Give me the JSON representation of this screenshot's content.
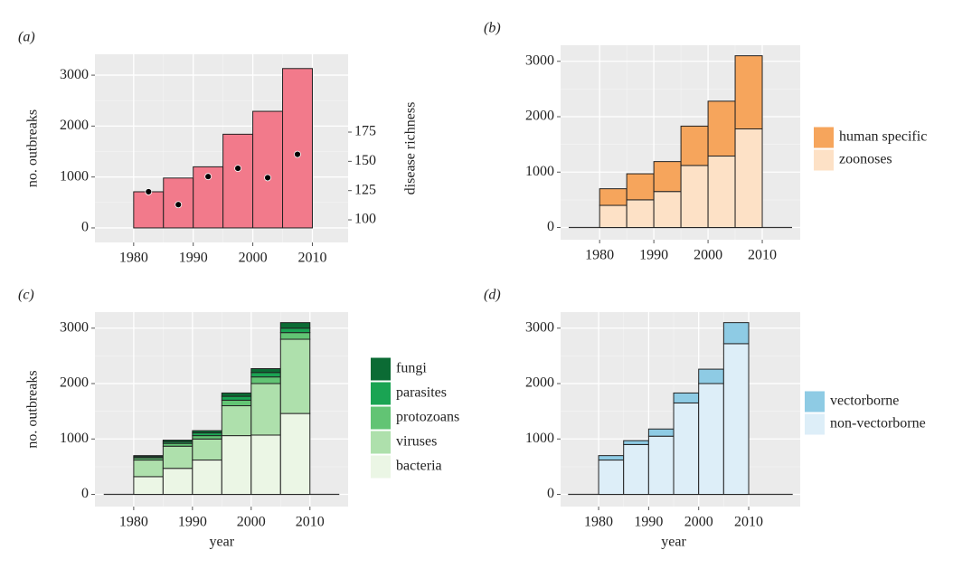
{
  "chart_data": [
    {
      "type": "histogram",
      "label": "(a)",
      "ylabel": "no. outbreaks",
      "y2label": "disease richness",
      "bins": [
        1980,
        1985,
        1990,
        1995,
        2000,
        2005,
        2010
      ],
      "values": [
        710,
        980,
        1200,
        1840,
        2290,
        3130
      ],
      "color": "#f27a8b",
      "points": {
        "x": [
          1982.5,
          1987.5,
          1992.5,
          1997.5,
          2002.5,
          2007.5
        ],
        "values": [
          124,
          113,
          137,
          144,
          136,
          156
        ],
        "axis": "y2",
        "color": "#000000"
      },
      "xlim": [
        1973.5,
        2016
      ],
      "xticks": [
        1980,
        1990,
        2000,
        2010
      ],
      "ylim": [
        -285,
        3410
      ],
      "yticks": [
        0,
        1000,
        2000,
        3000
      ],
      "y2lim": [
        80.7,
        241.5
      ],
      "y2ticks": [
        100,
        125,
        150,
        175
      ],
      "grid": true
    },
    {
      "type": "histogram",
      "label": "(b)",
      "bins": [
        1980,
        1985,
        1990,
        1995,
        2000,
        2005,
        2010
      ],
      "series": [
        {
          "name": "human specific",
          "color": "#f6a55c",
          "values": [
            300,
            470,
            540,
            710,
            990,
            1320
          ]
        },
        {
          "name": "zoonoses",
          "color": "#fde1c6",
          "values": [
            400,
            500,
            650,
            1120,
            1290,
            1780
          ]
        }
      ],
      "stacked": true,
      "legend": "right",
      "xlim": [
        1972.8,
        2017
      ],
      "xticks": [
        1980,
        1990,
        2000,
        2010
      ],
      "ylim": [
        -220,
        3290
      ],
      "yticks": [
        0,
        1000,
        2000,
        3000
      ],
      "grid": true
    },
    {
      "type": "histogram",
      "label": "(c)",
      "ylabel": "no. outbreaks",
      "xlabel": "year",
      "bins": [
        1980,
        1985,
        1990,
        1995,
        2000,
        2005,
        2010
      ],
      "series": [
        {
          "name": "fungi",
          "color": "#0b6b34",
          "values": [
            20,
            30,
            40,
            60,
            70,
            100
          ]
        },
        {
          "name": "parasites",
          "color": "#1aa453",
          "values": [
            20,
            30,
            50,
            70,
            80,
            80
          ]
        },
        {
          "name": "protozoans",
          "color": "#62c474",
          "values": [
            40,
            50,
            60,
            100,
            120,
            120
          ]
        },
        {
          "name": "viruses",
          "color": "#aee0ac",
          "values": [
            300,
            400,
            380,
            540,
            930,
            1340
          ]
        },
        {
          "name": "bacteria",
          "color": "#ebf6e5",
          "values": [
            320,
            470,
            620,
            1060,
            1070,
            1460
          ]
        }
      ],
      "stacked": true,
      "legend": "right",
      "xlim": [
        1973.4,
        2016.5
      ],
      "xticks": [
        1980,
        1990,
        2000,
        2010
      ],
      "ylim": [
        -220,
        3290
      ],
      "yticks": [
        0,
        1000,
        2000,
        3000
      ],
      "grid": true
    },
    {
      "type": "histogram",
      "label": "(d)",
      "xlabel": "year",
      "bins": [
        1980,
        1985,
        1990,
        1995,
        2000,
        2005,
        2010
      ],
      "series": [
        {
          "name": "vectorborne",
          "color": "#8ecbe4",
          "values": [
            80,
            70,
            130,
            180,
            260,
            380
          ]
        },
        {
          "name": "non-vectorborne",
          "color": "#ddeef8",
          "values": [
            620,
            900,
            1050,
            1650,
            2000,
            2720
          ]
        }
      ],
      "stacked": true,
      "legend": "right",
      "xlim": [
        1972.4,
        2020.3
      ],
      "xticks": [
        1980,
        1990,
        2000,
        2010
      ],
      "ylim": [
        -220,
        3290
      ],
      "yticks": [
        0,
        1000,
        2000,
        3000
      ],
      "grid": true
    }
  ]
}
